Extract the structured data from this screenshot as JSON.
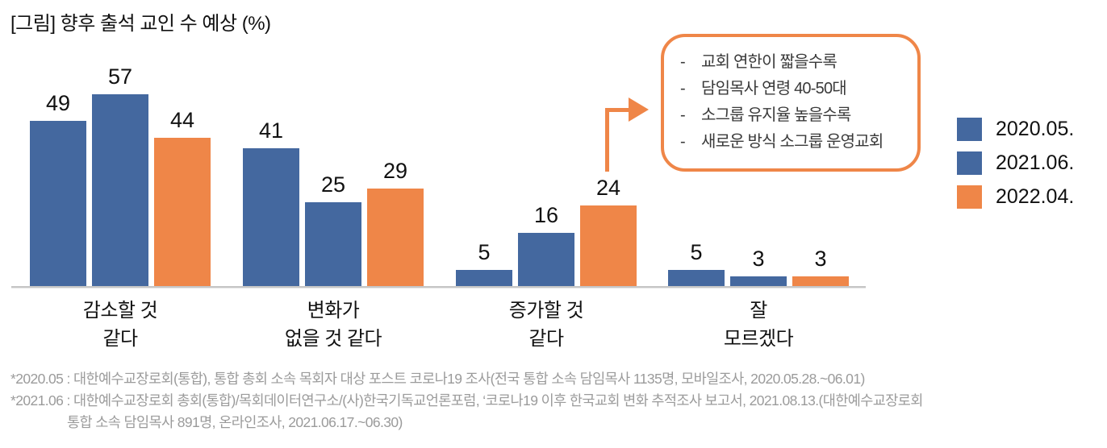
{
  "title": "[그림] 향후 출석 교인 수 예상 (%)",
  "colors": {
    "series_blue": "#44689F",
    "series_orange": "#EF8648",
    "axis_line": "#C6C6C6",
    "callout_border": "#EF8648",
    "footnote_text": "#9B9B9B"
  },
  "chart_data": {
    "type": "bar",
    "title": "[그림] 향후 출석 교인 수 예상 (%)",
    "unit": "%",
    "categories": [
      "감소할 것 같다",
      "변화가 없을 것 같다",
      "증가할 것 같다",
      "잘 모르겠다"
    ],
    "category_label_lines": [
      [
        "감소할 것",
        "같다"
      ],
      [
        "변화가",
        "없을 것 같다"
      ],
      [
        "증가할 것",
        "같다"
      ],
      [
        "잘",
        "모르겠다"
      ]
    ],
    "series": [
      {
        "name": "2020.05.",
        "color": "#44689F",
        "values": [
          49,
          41,
          5,
          5
        ]
      },
      {
        "name": "2021.06.",
        "color": "#44689F",
        "values": [
          57,
          25,
          16,
          3
        ]
      },
      {
        "name": "2022.04.",
        "color": "#EF8648",
        "values": [
          44,
          29,
          24,
          3
        ]
      }
    ],
    "ylim": [
      0,
      60
    ],
    "grid": false,
    "legend_position": "right",
    "value_labels": true,
    "annotation": {
      "bullet": "-",
      "items": [
        "교회 연한이 짧을수록",
        "담임목사 연령 40-50대",
        "소그룹 유지율 높을수록",
        "새로운 방식 소그룹 운영교회"
      ],
      "points_to_series": "2022.04.",
      "points_to_category": "증가할 것 같다",
      "points_to_value": 24
    }
  },
  "footnotes": [
    "*2020.05 : 대한예수교장로회(통합), 통합 총회 소속 목회자 대상 포스트 코로나19 조사(전국 통합 소속 담임목사 1135명, 모바일조사, 2020.05.28.~06.01)",
    "*2021.06 : 대한예수교장로회 총회(통합)/목회데이터연구소/(사)한국기독교언론포럼, ‘코로나19 이후 한국교회 변화 추적조사 보고서, 2021.08.13.(대한예수교장로회",
    "통합 소속 담임목사 891명, 온라인조사, 2021.06.17.~06.30)"
  ]
}
